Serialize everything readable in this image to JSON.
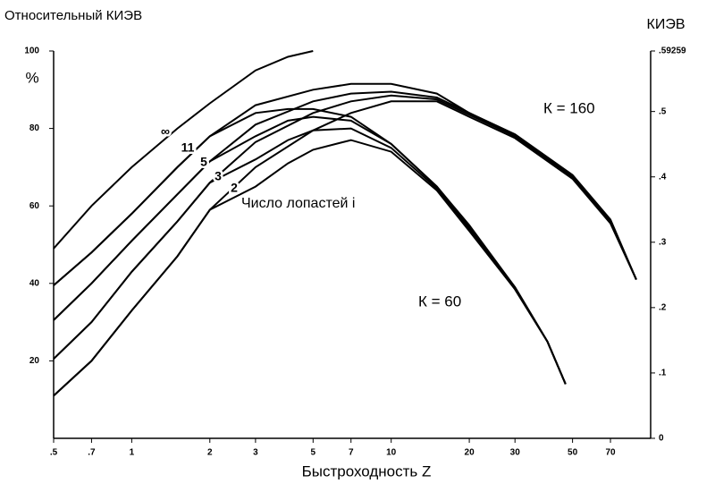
{
  "chart_data": {
    "type": "line",
    "title": "Относительный КИЭВ",
    "y_label": "%",
    "y2_label": "КИЭВ",
    "x_label": "Быстроходность Z",
    "annotations": [
      "Число лопастей i",
      "К = 160",
      "К = 60"
    ],
    "log_x": true,
    "color": "#000000",
    "xlim": [
      0.5,
      100
    ],
    "xticks": [
      {
        "value": 0.5,
        "label": ".5"
      },
      {
        "value": 0.7,
        "label": ".7"
      },
      1,
      2,
      3,
      5,
      7,
      10,
      20,
      30,
      50,
      70
    ],
    "ylim": [
      0,
      100
    ],
    "yticks": [
      20,
      40,
      60,
      80,
      100
    ],
    "y2lim": [
      0,
      0.59259
    ],
    "y2ticks": [
      0,
      {
        "value": 0.1,
        "label": ".1"
      },
      {
        "value": 0.2,
        "label": ".2"
      },
      {
        "value": 0.3,
        "label": ".3"
      },
      {
        "value": 0.4,
        "label": ".4"
      },
      {
        "value": 0.5,
        "label": ".5"
      },
      {
        "value": 0.59259,
        "label": ".59259"
      }
    ],
    "series": [
      {
        "name": "∞",
        "x": [
          0.5,
          0.7,
          1,
          1.5,
          2,
          3,
          4,
          5
        ],
        "values": [
          49,
          60,
          70,
          80,
          86.5,
          95,
          98.5,
          100
        ]
      },
      {
        "name": "11",
        "x": [
          0.5,
          0.7,
          1,
          1.5,
          2,
          3,
          5,
          7,
          10,
          15,
          20,
          30,
          50,
          70,
          88
        ],
        "values": [
          39.5,
          48,
          58,
          70,
          78,
          86,
          90,
          91.5,
          91.5,
          89,
          84,
          78.5,
          68,
          56.5,
          41
        ]
      },
      {
        "x": [
          0.5,
          0.7,
          1,
          1.5,
          2,
          3,
          4,
          5,
          7,
          10,
          15,
          20,
          30,
          40,
          47
        ],
        "values": [
          39.5,
          48,
          58,
          70,
          78,
          84,
          85,
          85,
          83,
          76,
          65,
          55,
          39,
          25,
          14
        ]
      },
      {
        "name": "5",
        "x": [
          0.5,
          0.7,
          1,
          1.5,
          2,
          3,
          5,
          7,
          10,
          15,
          20,
          30,
          50,
          70,
          88
        ],
        "values": [
          30.5,
          40,
          51,
          63,
          71.5,
          81,
          87,
          89,
          89.5,
          88,
          84,
          78,
          67.5,
          56,
          41
        ]
      },
      {
        "x": [
          0.5,
          0.7,
          1,
          1.5,
          2,
          3,
          4,
          5,
          7,
          10,
          15,
          20,
          30,
          40,
          47
        ],
        "values": [
          30.5,
          40,
          51,
          63,
          71.5,
          78,
          82,
          83,
          82,
          76,
          65,
          54.5,
          39,
          25,
          14
        ]
      },
      {
        "name": "3",
        "x": [
          0.5,
          0.7,
          1,
          1.5,
          2,
          3,
          5,
          7,
          10,
          15,
          20,
          30,
          50,
          70,
          88
        ],
        "values": [
          20.5,
          30,
          43,
          56,
          66,
          76.5,
          84,
          87,
          88.5,
          87.5,
          83.5,
          78,
          67.5,
          56,
          41
        ]
      },
      {
        "x": [
          0.5,
          0.7,
          1,
          1.5,
          2,
          3,
          4,
          5,
          7,
          10,
          15,
          20,
          30,
          40,
          47
        ],
        "values": [
          20.5,
          30,
          43,
          56,
          66,
          72,
          77,
          79.5,
          80,
          75,
          64.5,
          54,
          38.5,
          25,
          14
        ]
      },
      {
        "name": "2",
        "x": [
          0.5,
          0.7,
          1,
          1.5,
          2,
          3,
          5,
          7,
          10,
          15,
          20,
          30,
          50,
          70,
          88
        ],
        "values": [
          11,
          20,
          33,
          47,
          59,
          70,
          79.5,
          84,
          87,
          87,
          83,
          77.5,
          67,
          55.5,
          41
        ]
      },
      {
        "x": [
          0.5,
          0.7,
          1,
          1.5,
          2,
          3,
          4,
          5,
          7,
          10,
          15,
          20,
          30,
          40,
          47
        ],
        "values": [
          11,
          20,
          33,
          47,
          59,
          65,
          71,
          74.5,
          77,
          74,
          64,
          53.5,
          38.5,
          25,
          14
        ]
      }
    ]
  }
}
